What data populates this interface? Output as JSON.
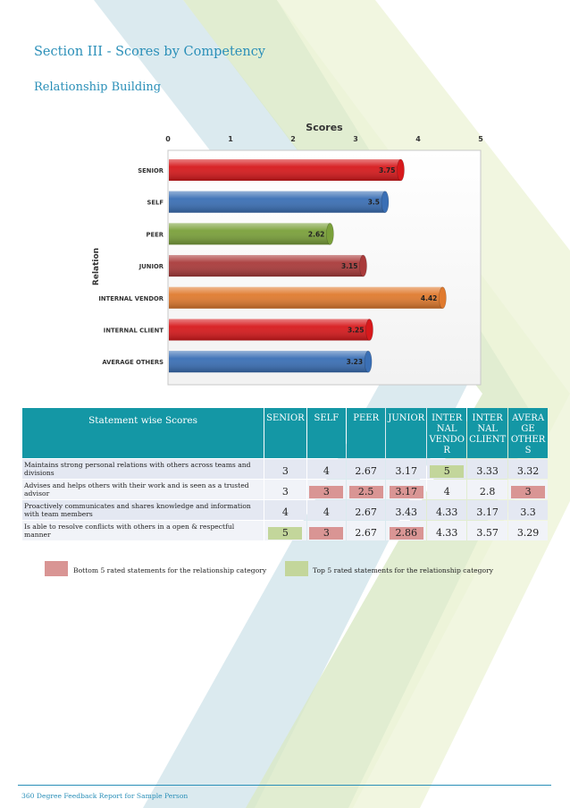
{
  "section_title": "Section III - Scores by Competency",
  "competency": "Relationship Building",
  "chart_data": {
    "type": "bar",
    "orientation": "horizontal",
    "title": "Scores",
    "ylabel": "Relation",
    "xlim": [
      0,
      5
    ],
    "xticks": [
      "0",
      "1",
      "2",
      "3",
      "4",
      "5"
    ],
    "categories": [
      "SENIOR",
      "SELF",
      "PEER",
      "JUNIOR",
      "INTERNAL VENDOR",
      "INTERNAL CLIENT",
      "AVERAGE OTHERS"
    ],
    "values": [
      3.75,
      3.5,
      2.62,
      3.15,
      4.42,
      3.25,
      3.23
    ],
    "labels": [
      "3.75",
      "3.5",
      "2.62",
      "3.15",
      "4.42",
      "3.25",
      "3.23"
    ],
    "colors": [
      "#d7191c",
      "#3a6fb5",
      "#7aa03a",
      "#a93a3a",
      "#e07a2e",
      "#d7191c",
      "#3a6fb5"
    ],
    "grid": false
  },
  "table": {
    "header_stmt": "Statement wise Scores",
    "columns": [
      [
        "SENIOR"
      ],
      [
        "SELF"
      ],
      [
        "PEER"
      ],
      [
        "JUNIOR"
      ],
      [
        "INTER",
        "NAL",
        "VENDO",
        "R"
      ],
      [
        "INTER",
        "NAL",
        "CLIENT"
      ],
      [
        "AVERA",
        "GE",
        "OTHER",
        "S"
      ]
    ],
    "rows": [
      {
        "statement": "Maintains strong personal relations with others across teams and divisions",
        "values": [
          "3",
          "4",
          "2.67",
          "3.17",
          "5",
          "3.33",
          "3.32"
        ],
        "marks": [
          "",
          "",
          "",
          "",
          "top",
          "",
          ""
        ]
      },
      {
        "statement": "Advises and helps others with their work and is seen as a trusted advisor",
        "values": [
          "3",
          "3",
          "2.5",
          "3.17",
          "4",
          "2.8",
          "3"
        ],
        "marks": [
          "",
          "low",
          "low",
          "low",
          "",
          "",
          "low"
        ]
      },
      {
        "statement": "Proactively communicates and shares knowledge and information with team members",
        "values": [
          "4",
          "4",
          "2.67",
          "3.43",
          "4.33",
          "3.17",
          "3.3"
        ],
        "marks": [
          "",
          "",
          "",
          "",
          "",
          "",
          ""
        ]
      },
      {
        "statement": "Is able to resolve conflicts with others in a open & respectful manner",
        "values": [
          "5",
          "3",
          "2.67",
          "2.86",
          "4.33",
          "3.57",
          "3.29"
        ],
        "marks": [
          "top",
          "low",
          "",
          "low",
          "",
          "",
          ""
        ]
      }
    ]
  },
  "legend": {
    "bottom_label": "Bottom 5 rated statements for the relationship category",
    "bottom_color": "#d99594",
    "top_label": "Top 5 rated statements for the relationship category",
    "top_color": "#c3d69b"
  },
  "footer": "360 Degree Feedback Report for Sample Person"
}
